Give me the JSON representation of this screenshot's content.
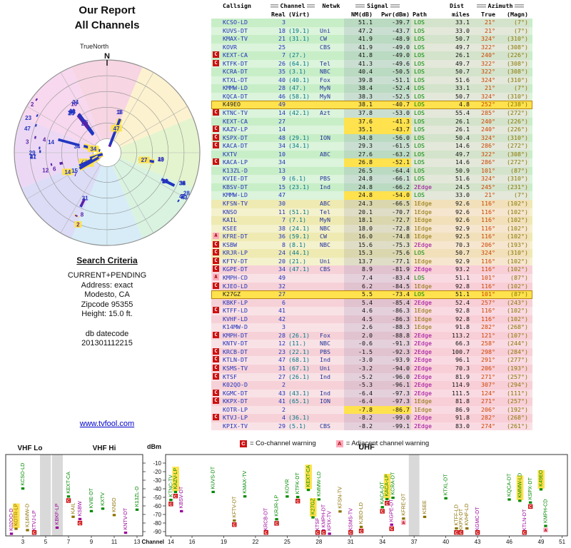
{
  "report": {
    "title_line1": "Our Report",
    "title_line2": "All Channels",
    "true_north_label": "TrueNorth",
    "north_label": "N",
    "search_criteria_title": "Search Criteria",
    "search_criteria_lines": [
      "CURRENT+PENDING",
      "Address: exact",
      "Modesto, CA",
      "Zipcode 95355",
      "Height: 15.0 ft."
    ],
    "datecode_lines": [
      "db datecode",
      "201301112215"
    ],
    "link": "www.tvfool.com"
  },
  "legend": {
    "co": {
      "symbol": "C",
      "text": "= Co-channel warning"
    },
    "adj": {
      "symbol": "A",
      "text": "= Adjacent channel warning"
    }
  },
  "colors": {
    "bandGreen": "#c8eec8",
    "bandYellow": "#eeeab2",
    "bandPink": "#f6d2d8",
    "pending": "#ffe24d",
    "cochannel": "#cc1111",
    "adjacent": "#ffaabb",
    "pathLOS": "#008800",
    "path1Edge": "#8a7000",
    "path2Edge": "#990099",
    "link": "#0000cc",
    "callsign": "#2233bb",
    "channelNum": "#2233bb",
    "virt": "#007788",
    "network": "#223399",
    "azTrue": "#cc4400",
    "azMagn": "#887700",
    "vhf": "#5b21a8",
    "uhf": "#2236c0"
  },
  "table": {
    "h": {
      "callsign": "Callsign",
      "channel": "Channel",
      "netwk": "Netwk",
      "signal": "Signal",
      "dist": "Dist",
      "azimuth": "Azimuth",
      "real": "Real",
      "virt": "(Virt)",
      "nm": "NM(dB)",
      "pwr": "Pwr(dBm)",
      "path": "Path",
      "miles": "miles",
      "true": "True",
      "magn": "(Magn)"
    }
  },
  "stations": [
    {
      "w": "",
      "cs": "KCSO-LD",
      "ch": "3",
      "vt": "",
      "nw": "",
      "nm": "51.1",
      "pw": "-39.7",
      "pa": "LOS",
      "di": "33.1",
      "az": "21°",
      "mg": "(7°)",
      "b": "g",
      "pd": ""
    },
    {
      "w": "",
      "cs": "KUVS-DT",
      "ch": "18",
      "vt": "(19.1)",
      "nw": "Uni",
      "nm": "47.2",
      "pw": "-43.7",
      "pa": "LOS",
      "di": "33.0",
      "az": "21°",
      "mg": "(7°)",
      "b": "g",
      "pd": ""
    },
    {
      "w": "",
      "cs": "KMAX-TV",
      "ch": "21",
      "vt": "(31.1)",
      "nw": "CW",
      "nm": "41.9",
      "pw": "-48.9",
      "pa": "LOS",
      "di": "50.7",
      "az": "324°",
      "mg": "(310°)",
      "b": "g",
      "pd": ""
    },
    {
      "w": "",
      "cs": "KOVR",
      "ch": "25",
      "vt": "",
      "nw": "CBS",
      "nm": "41.9",
      "pw": "-49.0",
      "pa": "LOS",
      "di": "49.7",
      "az": "322°",
      "mg": "(308°)",
      "b": "g",
      "pd": ""
    },
    {
      "w": "C",
      "cs": "KEXT-CA",
      "ch": "7",
      "vt": "(27.)",
      "nw": "",
      "nm": "41.8",
      "pw": "-49.0",
      "pa": "LOS",
      "di": "26.1",
      "az": "240°",
      "mg": "(226°)",
      "b": "g",
      "pd": ""
    },
    {
      "w": "C",
      "cs": "KTFK-DT",
      "ch": "26",
      "vt": "(64.1)",
      "nw": "Tel",
      "nm": "41.3",
      "pw": "-49.6",
      "pa": "LOS",
      "di": "49.7",
      "az": "322°",
      "mg": "(308°)",
      "b": "g",
      "pd": ""
    },
    {
      "w": "",
      "cs": "KCRA-DT",
      "ch": "35",
      "vt": "(3.1)",
      "nw": "NBC",
      "nm": "40.4",
      "pw": "-50.5",
      "pa": "LOS",
      "di": "50.7",
      "az": "322°",
      "mg": "(308°)",
      "b": "g",
      "pd": ""
    },
    {
      "w": "",
      "cs": "KTXL-DT",
      "ch": "40",
      "vt": "(40.1)",
      "nw": "Fox",
      "nm": "39.8",
      "pw": "-51.1",
      "pa": "LOS",
      "di": "51.6",
      "az": "324°",
      "mg": "(310°)",
      "b": "g",
      "pd": ""
    },
    {
      "w": "",
      "cs": "KMMW-LD",
      "ch": "28",
      "vt": "(47.)",
      "nw": "MyN",
      "nm": "38.4",
      "pw": "-52.4",
      "pa": "LOS",
      "di": "33.1",
      "az": "21°",
      "mg": "(7°)",
      "b": "g",
      "pd": ""
    },
    {
      "w": "",
      "cs": "KQCA-DT",
      "ch": "46",
      "vt": "(58.1)",
      "nw": "MyN",
      "nm": "38.3",
      "pw": "-52.5",
      "pa": "LOS",
      "di": "50.7",
      "az": "324°",
      "mg": "(310°)",
      "b": "g",
      "pd": ""
    },
    {
      "w": "",
      "cs": "K49EO",
      "ch": "49",
      "vt": "",
      "nw": "",
      "nm": "38.1",
      "pw": "-40.7",
      "pa": "LOS",
      "di": "4.8",
      "az": "252°",
      "mg": "(238°)",
      "b": "g",
      "pd": "row"
    },
    {
      "w": "C",
      "cs": "KTNC-TV",
      "ch": "14",
      "vt": "(42.1)",
      "nw": "Azt",
      "nm": "37.8",
      "pw": "-53.0",
      "pa": "LOS",
      "di": "55.4",
      "az": "285°",
      "mg": "(272°)",
      "b": "g",
      "pd": ""
    },
    {
      "w": "",
      "cs": "KEXT-CA",
      "ch": "27",
      "vt": "",
      "nw": "",
      "nm": "37.6",
      "pw": "-41.3",
      "pa": "LOS",
      "di": "26.1",
      "az": "240°",
      "mg": "(226°)",
      "b": "g",
      "pd": "sig"
    },
    {
      "w": "C",
      "cs": "KAZV-LP",
      "ch": "14",
      "vt": "",
      "nw": "",
      "nm": "35.1",
      "pw": "-43.7",
      "pa": "LOS",
      "di": "26.1",
      "az": "240°",
      "mg": "(226°)",
      "b": "g",
      "pd": "sig"
    },
    {
      "w": "C",
      "cs": "KSPX-DT",
      "ch": "48",
      "vt": "(29.1)",
      "nw": "ION",
      "nm": "34.8",
      "pw": "-56.0",
      "pa": "LOS",
      "di": "50.4",
      "az": "324°",
      "mg": "(310°)",
      "b": "g",
      "pd": ""
    },
    {
      "w": "C",
      "cs": "KACA-DT",
      "ch": "34",
      "vt": "(34.1)",
      "nw": "",
      "nm": "29.3",
      "pw": "-61.5",
      "pa": "LOS",
      "di": "14.6",
      "az": "286°",
      "mg": "(272°)",
      "b": "g",
      "pd": ""
    },
    {
      "w": "",
      "cs": "KXTV",
      "ch": "10",
      "vt": "",
      "nw": "ABC",
      "nm": "27.6",
      "pw": "-63.2",
      "pa": "LOS",
      "di": "49.7",
      "az": "322°",
      "mg": "(308°)",
      "b": "g",
      "pd": ""
    },
    {
      "w": "C",
      "cs": "KACA-LP",
      "ch": "34",
      "vt": "",
      "nw": "",
      "nm": "26.8",
      "pw": "-52.1",
      "pa": "LOS",
      "di": "14.6",
      "az": "286°",
      "mg": "(272°)",
      "b": "g",
      "pd": "sig"
    },
    {
      "w": "",
      "cs": "K13ZL-D",
      "ch": "13",
      "vt": "",
      "nw": "",
      "nm": "26.5",
      "pw": "-64.4",
      "pa": "LOS",
      "di": "50.9",
      "az": "101°",
      "mg": "(87°)",
      "b": "g",
      "pd": ""
    },
    {
      "w": "",
      "cs": "KVIE-DT",
      "ch": "9",
      "vt": "(6.1)",
      "nw": "PBS",
      "nm": "24.8",
      "pw": "-66.1",
      "pa": "LOS",
      "di": "51.6",
      "az": "324°",
      "mg": "(310°)",
      "b": "g",
      "pd": ""
    },
    {
      "w": "",
      "cs": "KBSV-DT",
      "ch": "15",
      "vt": "(23.1)",
      "nw": "Ind",
      "nm": "24.8",
      "pw": "-66.2",
      "pa": "2Edge",
      "di": "24.5",
      "az": "245°",
      "mg": "(231°)",
      "b": "g",
      "pd": ""
    },
    {
      "w": "",
      "cs": "KMMW-LD",
      "ch": "47",
      "vt": "",
      "nw": "",
      "nm": "24.8",
      "pw": "-54.0",
      "pa": "LOS",
      "di": "33.0",
      "az": "21°",
      "mg": "(7°)",
      "b": "g",
      "pd": "sig"
    },
    {
      "w": "",
      "cs": "KFSN-TV",
      "ch": "30",
      "vt": "",
      "nw": "ABC",
      "nm": "24.3",
      "pw": "-66.5",
      "pa": "1Edge",
      "di": "92.6",
      "az": "116°",
      "mg": "(102°)",
      "b": "y",
      "pd": ""
    },
    {
      "w": "",
      "cs": "KNSO",
      "ch": "11",
      "vt": "(51.1)",
      "nw": "Tel",
      "nm": "20.1",
      "pw": "-70.7",
      "pa": "1Edge",
      "di": "92.6",
      "az": "116°",
      "mg": "(102°)",
      "b": "y",
      "pd": ""
    },
    {
      "w": "",
      "cs": "KAIL",
      "ch": "7",
      "vt": "(7.1)",
      "nw": "MyN",
      "nm": "18.1",
      "pw": "-72.7",
      "pa": "1Edge",
      "di": "92.6",
      "az": "116°",
      "mg": "(102°)",
      "b": "y",
      "pd": ""
    },
    {
      "w": "",
      "cs": "KSEE",
      "ch": "38",
      "vt": "(24.1)",
      "nw": "NBC",
      "nm": "18.0",
      "pw": "-72.8",
      "pa": "1Edge",
      "di": "92.9",
      "az": "116°",
      "mg": "(102°)",
      "b": "y",
      "pd": ""
    },
    {
      "w": "A",
      "cs": "KFRE-DT",
      "ch": "36",
      "vt": "(59.1)",
      "nw": "CW",
      "nm": "16.0",
      "pw": "-74.8",
      "pa": "1Edge",
      "di": "92.5",
      "az": "116°",
      "mg": "(102°)",
      "b": "y",
      "pd": ""
    },
    {
      "w": "C",
      "cs": "KSBW",
      "ch": "8",
      "vt": "(8.1)",
      "nw": "NBC",
      "nm": "15.6",
      "pw": "-75.3",
      "pa": "2Edge",
      "di": "70.3",
      "az": "206°",
      "mg": "(193°)",
      "b": "y",
      "pd": ""
    },
    {
      "w": "C",
      "cs": "KRJR-LP",
      "ch": "24",
      "vt": "(44.1)",
      "nw": "",
      "nm": "15.3",
      "pw": "-75.6",
      "pa": "LOS",
      "di": "50.7",
      "az": "324°",
      "mg": "(310°)",
      "b": "y",
      "pd": ""
    },
    {
      "w": "C",
      "cs": "KFTV-DT",
      "ch": "20",
      "vt": "(21.)",
      "nw": "Uni",
      "nm": "13.7",
      "pw": "-77.1",
      "pa": "1Edge",
      "di": "92.9",
      "az": "116°",
      "mg": "(102°)",
      "b": "y",
      "pd": ""
    },
    {
      "w": "C",
      "cs": "KGPE-DT",
      "ch": "34",
      "vt": "(47.1)",
      "nw": "CBS",
      "nm": "8.9",
      "pw": "-81.9",
      "pa": "2Edge",
      "di": "93.2",
      "az": "116°",
      "mg": "(102°)",
      "b": "p",
      "pd": ""
    },
    {
      "w": "A",
      "cs": "KMPH-CD",
      "ch": "49",
      "vt": "",
      "nw": "",
      "nm": "7.4",
      "pw": "-83.4",
      "pa": "LOS",
      "di": "51.1",
      "az": "101°",
      "mg": "(87°)",
      "b": "p",
      "pd": ""
    },
    {
      "w": "C",
      "cs": "KJEO-LD",
      "ch": "32",
      "vt": "",
      "nw": "",
      "nm": "6.2",
      "pw": "-84.5",
      "pa": "1Edge",
      "di": "92.8",
      "az": "116°",
      "mg": "(102°)",
      "b": "p",
      "pd": ""
    },
    {
      "w": "",
      "cs": "K27GZ",
      "ch": "27",
      "vt": "",
      "nw": "",
      "nm": "5.5",
      "pw": "-73.4",
      "pa": "LOS",
      "di": "51.1",
      "az": "101°",
      "mg": "(87°)",
      "b": "p",
      "pd": "row"
    },
    {
      "w": "",
      "cs": "KBKF-LP",
      "ch": "6",
      "vt": "",
      "nw": "",
      "nm": "5.4",
      "pw": "-85.4",
      "pa": "2Edge",
      "di": "52.4",
      "az": "257°",
      "mg": "(243°)",
      "b": "p",
      "pd": ""
    },
    {
      "w": "C",
      "cs": "KTFF-LD",
      "ch": "41",
      "vt": "",
      "nw": "",
      "nm": "4.6",
      "pw": "-86.3",
      "pa": "1Edge",
      "di": "92.8",
      "az": "116°",
      "mg": "(102°)",
      "b": "p",
      "pd": ""
    },
    {
      "w": "",
      "cs": "KVHF-LD",
      "ch": "42",
      "vt": "",
      "nw": "",
      "nm": "4.5",
      "pw": "-86.3",
      "pa": "1Edge",
      "di": "92.8",
      "az": "116°",
      "mg": "(102°)",
      "b": "p",
      "pd": ""
    },
    {
      "w": "",
      "cs": "K14MW-D",
      "ch": "3",
      "vt": "",
      "nw": "",
      "nm": "2.6",
      "pw": "-88.3",
      "pa": "1Edge",
      "di": "91.8",
      "az": "282°",
      "mg": "(268°)",
      "b": "p",
      "pd": ""
    },
    {
      "w": "C",
      "cs": "KMPH-DT",
      "ch": "28",
      "vt": "(26.1)",
      "nw": "Fox",
      "nm": "2.0",
      "pw": "-88.8",
      "pa": "2Edge",
      "di": "113.2",
      "az": "121°",
      "mg": "(107°)",
      "b": "p",
      "pd": ""
    },
    {
      "w": "",
      "cs": "KNTV-DT",
      "ch": "12",
      "vt": "(11.)",
      "nw": "NBC",
      "nm": "-0.6",
      "pw": "-91.3",
      "pa": "2Edge",
      "di": "66.3",
      "az": "258°",
      "mg": "(244°)",
      "b": "p",
      "pd": ""
    },
    {
      "w": "C",
      "cs": "KRCB-DT",
      "ch": "23",
      "vt": "(22.1)",
      "nw": "PBS",
      "nm": "-1.5",
      "pw": "-92.3",
      "pa": "2Edge",
      "di": "100.7",
      "az": "298°",
      "mg": "(284°)",
      "b": "p",
      "pd": ""
    },
    {
      "w": "C",
      "cs": "KTLN-DT",
      "ch": "47",
      "vt": "(68.1)",
      "nw": "Ind",
      "nm": "-3.0",
      "pw": "-93.9",
      "pa": "2Edge",
      "di": "96.1",
      "az": "291°",
      "mg": "(277°)",
      "b": "p",
      "pd": ""
    },
    {
      "w": "C",
      "cs": "KSMS-TV",
      "ch": "31",
      "vt": "(67.1)",
      "nw": "Uni",
      "nm": "-3.2",
      "pw": "-94.0",
      "pa": "2Edge",
      "di": "70.3",
      "az": "206°",
      "mg": "(193°)",
      "b": "p",
      "pd": ""
    },
    {
      "w": "C",
      "cs": "KTSF",
      "ch": "27",
      "vt": "(26.1)",
      "nw": "Ind",
      "nm": "-5.2",
      "pw": "-96.0",
      "pa": "2Edge",
      "di": "81.9",
      "az": "271°",
      "mg": "(257°)",
      "b": "p",
      "pd": ""
    },
    {
      "w": "",
      "cs": "K02QO-D",
      "ch": "2",
      "vt": "",
      "nw": "",
      "nm": "-5.3",
      "pw": "-96.1",
      "pa": "2Edge",
      "di": "114.9",
      "az": "307°",
      "mg": "(294°)",
      "b": "p",
      "pd": ""
    },
    {
      "w": "C",
      "cs": "KGMC-DT",
      "ch": "43",
      "vt": "(43.1)",
      "nw": "Ind",
      "nm": "-6.4",
      "pw": "-97.3",
      "pa": "2Edge",
      "di": "111.5",
      "az": "124°",
      "mg": "(111°)",
      "b": "p",
      "pd": ""
    },
    {
      "w": "C",
      "cs": "KKPX-DT",
      "ch": "41",
      "vt": "(65.1)",
      "nw": "ION",
      "nm": "-6.4",
      "pw": "-97.3",
      "pa": "1Edge",
      "di": "81.8",
      "az": "271°",
      "mg": "(257°)",
      "b": "p",
      "pd": ""
    },
    {
      "w": "",
      "cs": "KOTR-LP",
      "ch": "2",
      "vt": "",
      "nw": "",
      "nm": "-7.8",
      "pw": "-86.7",
      "pa": "1Edge",
      "di": "86.9",
      "az": "206°",
      "mg": "(192°)",
      "b": "p",
      "pd": "sig"
    },
    {
      "w": "C",
      "cs": "KTVJ-LP",
      "ch": "4",
      "vt": "(36.1)",
      "nw": "",
      "nm": "-8.2",
      "pw": "-99.0",
      "pa": "2Edge",
      "di": "91.8",
      "az": "282°",
      "mg": "(268°)",
      "b": "p",
      "pd": ""
    },
    {
      "w": "",
      "cs": "KPIX-TV",
      "ch": "29",
      "vt": "(5.1)",
      "nw": "CBS",
      "nm": "-8.2",
      "pw": "-99.1",
      "pa": "2Edge",
      "di": "83.0",
      "az": "274°",
      "mg": "(261°)",
      "b": "p",
      "pd": ""
    }
  ],
  "chart_data": {
    "type": "radar+spectrum",
    "radar": {
      "title": "All Channels azimuth/distance plot",
      "angle_axis": "true azimuth (degrees, N=0, clockwise)",
      "radial_axis": "distance (miles)",
      "max_distance_miles": 115,
      "rings": [
        0.15,
        0.32,
        0.49,
        0.66,
        0.83,
        1.0
      ],
      "sector_colors": [
        "#f7d5e2",
        "#fdf2cf",
        "#e4f4cf",
        "#d9f3e0",
        "#d7ecf7",
        "#dcdcf7",
        "#ecd8f4",
        "#f7d8ee"
      ],
      "stations_source": "stations"
    },
    "spectrum": {
      "ylabel": "dBm",
      "ylim": [
        -95,
        -10
      ],
      "dbm_ticks": [
        -10,
        -20,
        -30,
        -40,
        -50,
        -60,
        -70,
        -80,
        -90
      ],
      "x_axis_label": "Channel",
      "vhf": {
        "range": [
          2,
          13
        ],
        "titles": [
          "VHF Lo",
          "VHF Hi"
        ],
        "tick_labels": [
          3,
          5,
          7,
          9,
          11,
          13
        ],
        "gray_bands": [
          [
            4.5,
            5.45
          ],
          [
            5.55,
            6.5
          ]
        ]
      },
      "uhf": {
        "range": [
          14,
          51
        ],
        "title": "UHF",
        "tick_labels": [
          14,
          16,
          19,
          22,
          25,
          28,
          31,
          34,
          37,
          40,
          43,
          46,
          49,
          51
        ],
        "gray_bands": [
          [
            36.5,
            37.5
          ]
        ]
      },
      "stations_source": "stations"
    }
  }
}
